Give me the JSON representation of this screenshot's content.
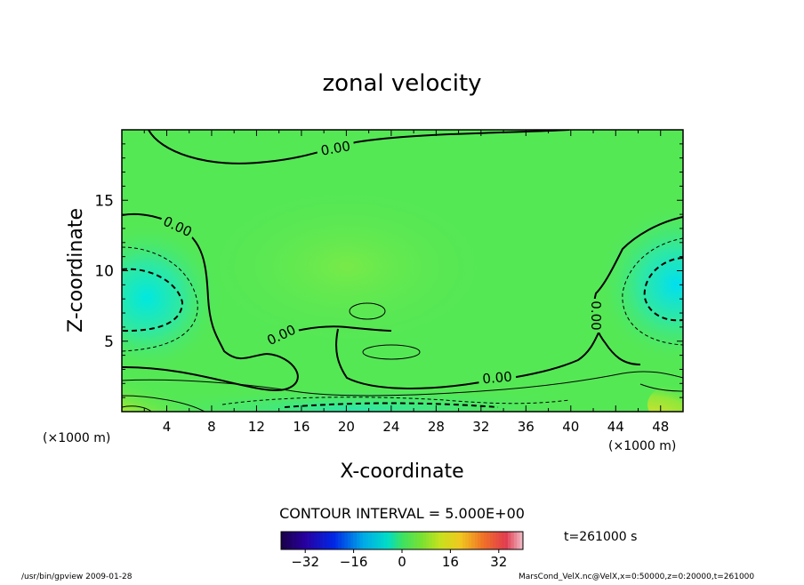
{
  "chart_data": {
    "type": "heatmap",
    "title": "zonal velocity",
    "xlabel": "X-coordinate",
    "ylabel": "Z-coordinate",
    "x_unit_label": "(×1000 m)",
    "z_unit_label": "(×1000 m)",
    "xlim": [
      0,
      50
    ],
    "ylim": [
      0,
      20
    ],
    "x_ticks": [
      4,
      8,
      12,
      16,
      20,
      24,
      28,
      32,
      36,
      40,
      44,
      48
    ],
    "y_ticks": [
      5,
      10,
      15
    ],
    "contour_interval_text": "CONTOUR INTERVAL = 5.000E+00",
    "contour_label": "0.00",
    "time_label": "t=261000 s",
    "colorbar": {
      "range": [
        -40,
        40
      ],
      "ticks": [
        -32,
        -16,
        0,
        16,
        32
      ]
    },
    "features": [
      {
        "x": 2.0,
        "z": 8.0,
        "value": -10
      },
      {
        "x": 48.0,
        "z": 9.5,
        "value": -10
      },
      {
        "x": 20.0,
        "z": 0.5,
        "value": -6
      },
      {
        "x": 1.0,
        "z": 0.2,
        "value": 25
      },
      {
        "x": 22.0,
        "z": 7.5,
        "value": 5
      },
      {
        "x": 22.0,
        "z": 4.5,
        "value": 5
      }
    ]
  },
  "footer": {
    "left": "/usr/bin/gpview  2009-01-28",
    "right": "MarsCond_VelX.nc@VelX,x=0:50000,z=0:20000,t=261000"
  }
}
